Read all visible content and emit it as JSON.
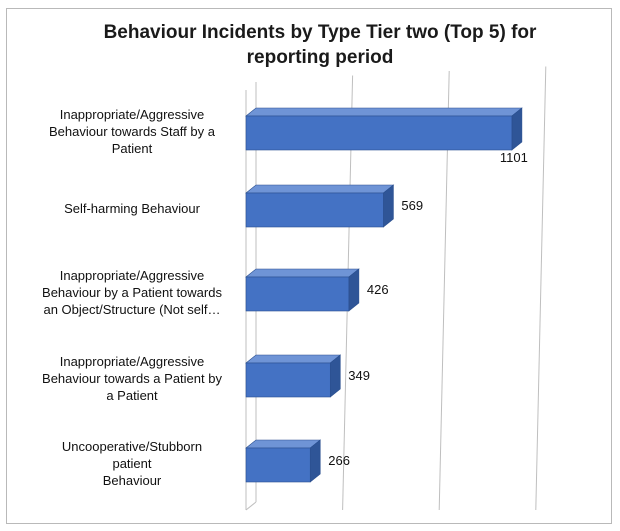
{
  "chart_data": {
    "type": "bar",
    "orientation": "horizontal",
    "style": "3d",
    "title": "Behaviour Incidents by Type Tier two (Top 5) for reporting period",
    "categories": [
      "Inappropriate/Aggressive Behaviour towards Staff by a Patient",
      "Self-harming Behaviour",
      "Inappropriate/Aggressive Behaviour by a Patient towards an Object/Structure (Not self…",
      "Inappropriate/Aggressive Behaviour towards a Patient by a Patient",
      "Uncooperative/Stubborn patient Behaviour"
    ],
    "category_lines": [
      [
        "Inappropriate/Aggressive",
        "Behaviour towards Staff by a",
        "Patient"
      ],
      [
        "Self-harming Behaviour"
      ],
      [
        "Inappropriate/Aggressive",
        "Behaviour by a Patient towards",
        "an Object/Structure (Not self…"
      ],
      [
        "Inappropriate/Aggressive",
        "Behaviour towards a Patient by",
        "a Patient"
      ],
      [
        "Uncooperative/Stubborn",
        "patient",
        "Behaviour"
      ]
    ],
    "values": [
      1101,
      569,
      426,
      349,
      266
    ],
    "data_labels": [
      "1101",
      "569",
      "426",
      "349",
      "266"
    ],
    "xlim": [
      0,
      1600
    ],
    "xlabel": "",
    "ylabel": "",
    "gridlines": "vertical",
    "legend": "none",
    "bar_color": "#4472c4",
    "bar_side_color": "#2f5597",
    "bar_top_color": "#6f94d6",
    "grid_color": "#bfbfbf"
  }
}
